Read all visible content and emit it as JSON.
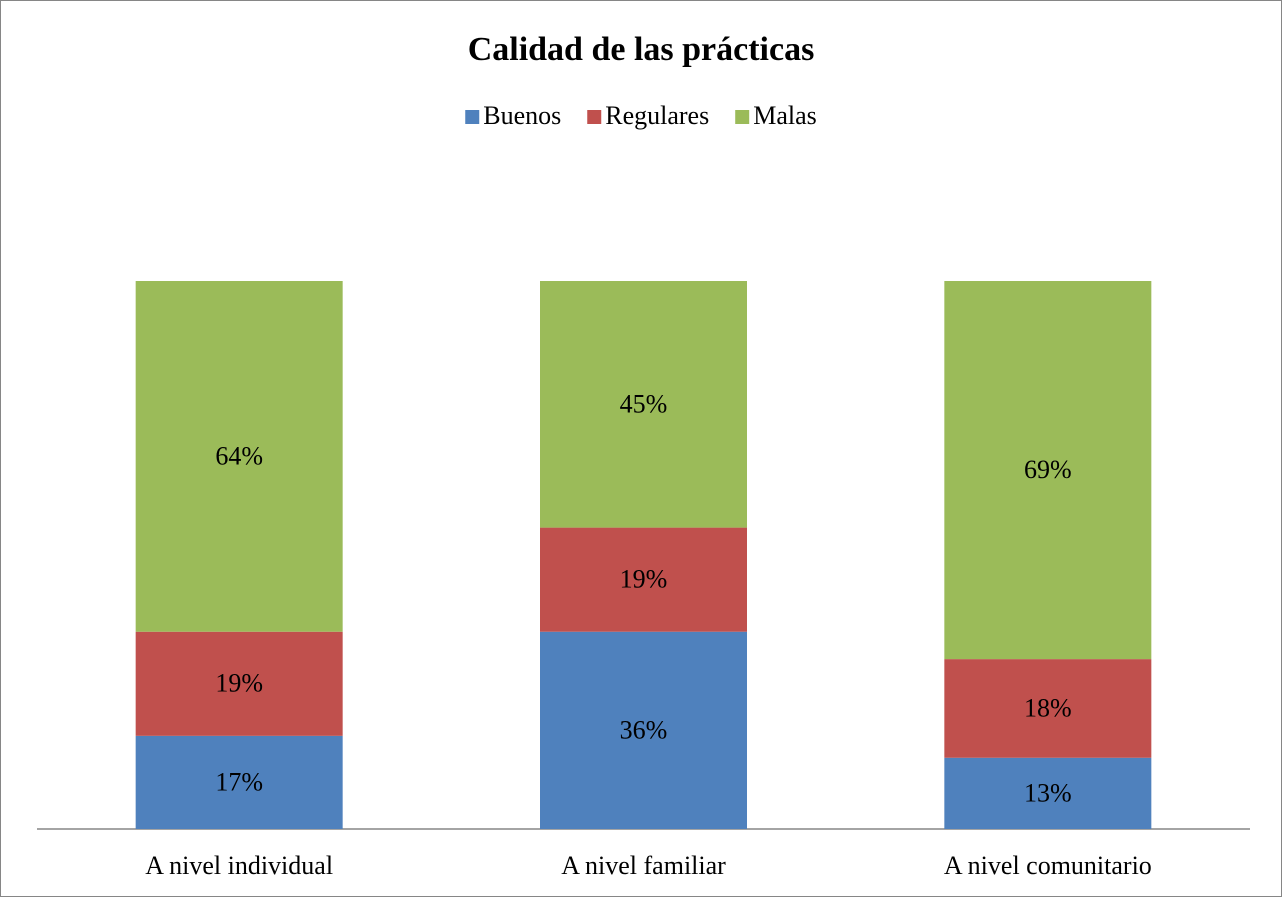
{
  "chart_data": {
    "type": "stacked_bar",
    "title": "Calidad de las prácticas",
    "categories": [
      "A nivel individual",
      "A nivel familiar",
      "A nivel comunitario"
    ],
    "series": [
      {
        "name": "Buenos",
        "color": "#4f81bd",
        "values": [
          17,
          36,
          13
        ],
        "value_labels": [
          "17%",
          "36%",
          "13%"
        ]
      },
      {
        "name": "Regulares",
        "color": "#c0504d",
        "values": [
          19,
          19,
          18
        ],
        "value_labels": [
          "19%",
          "19%",
          "18%"
        ]
      },
      {
        "name": "Malas",
        "color": "#9bbb59",
        "values": [
          64,
          45,
          69
        ],
        "value_labels": [
          "64%",
          "45%",
          "69%"
        ]
      }
    ],
    "ylim": [
      0,
      100
    ],
    "legend": "top"
  }
}
